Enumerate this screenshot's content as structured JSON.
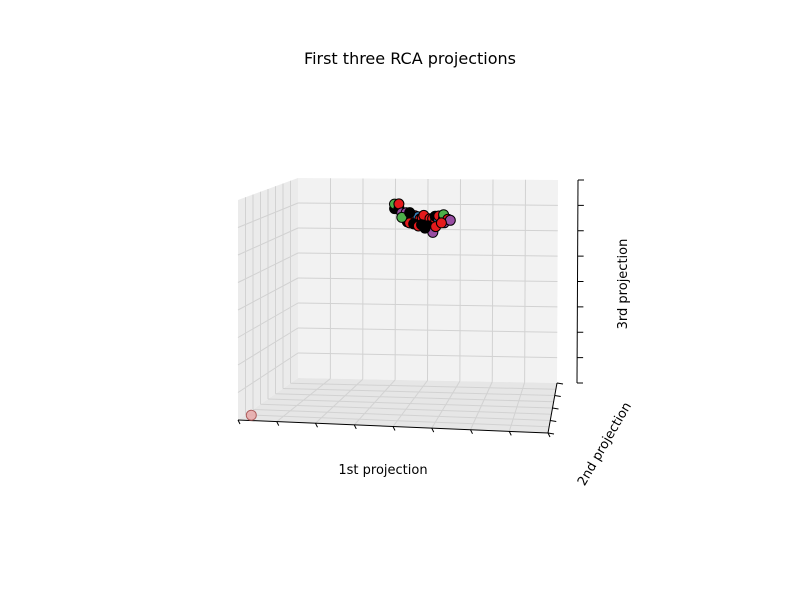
{
  "chart_data": {
    "type": "scatter",
    "projection": "3d",
    "title": "First three RCA projections",
    "xlabel": "1st projection",
    "ylabel": "2nd projection",
    "zlabel": "3rd projection",
    "grid": true,
    "colors": {
      "red": "#e41a1c",
      "green": "#4daf4a",
      "purple": "#984ea3",
      "blue": "#377eb8",
      "black": "#000000",
      "pane": "#f2f2f2",
      "grid": "#d2d2d2",
      "outlier": "#e8a8a8"
    },
    "points": [
      {
        "x": 0.72,
        "y": 0.5,
        "z": 0.88,
        "c": "black"
      },
      {
        "x": 0.73,
        "y": 0.5,
        "z": 0.9,
        "c": "green"
      },
      {
        "x": 0.745,
        "y": 0.5,
        "z": 0.88,
        "c": "black"
      },
      {
        "x": 0.755,
        "y": 0.5,
        "z": 0.9,
        "c": "red"
      },
      {
        "x": 0.75,
        "y": 0.5,
        "z": 0.86,
        "c": "purple"
      },
      {
        "x": 0.765,
        "y": 0.5,
        "z": 0.84,
        "c": "black"
      },
      {
        "x": 0.775,
        "y": 0.5,
        "z": 0.86,
        "c": "purple"
      },
      {
        "x": 0.78,
        "y": 0.5,
        "z": 0.835,
        "c": "black"
      },
      {
        "x": 0.79,
        "y": 0.5,
        "z": 0.85,
        "c": "red"
      },
      {
        "x": 0.8,
        "y": 0.5,
        "z": 0.835,
        "c": "green"
      },
      {
        "x": 0.805,
        "y": 0.5,
        "z": 0.825,
        "c": "black"
      },
      {
        "x": 0.815,
        "y": 0.5,
        "z": 0.845,
        "c": "red"
      },
      {
        "x": 0.82,
        "y": 0.5,
        "z": 0.82,
        "c": "black"
      },
      {
        "x": 0.83,
        "y": 0.5,
        "z": 0.84,
        "c": "blue"
      },
      {
        "x": 0.835,
        "y": 0.5,
        "z": 0.83,
        "c": "red"
      },
      {
        "x": 0.845,
        "y": 0.5,
        "z": 0.815,
        "c": "black"
      },
      {
        "x": 0.85,
        "y": 0.5,
        "z": 0.835,
        "c": "red"
      },
      {
        "x": 0.86,
        "y": 0.5,
        "z": 0.825,
        "c": "purple"
      },
      {
        "x": 0.865,
        "y": 0.5,
        "z": 0.845,
        "c": "red"
      },
      {
        "x": 0.875,
        "y": 0.5,
        "z": 0.81,
        "c": "red"
      },
      {
        "x": 0.88,
        "y": 0.5,
        "z": 0.79,
        "c": "purple"
      },
      {
        "x": 0.89,
        "y": 0.5,
        "z": 0.83,
        "c": "red"
      },
      {
        "x": 0.9,
        "y": 0.5,
        "z": 0.815,
        "c": "black"
      },
      {
        "x": 0.905,
        "y": 0.5,
        "z": 0.83,
        "c": "red"
      },
      {
        "x": 0.915,
        "y": 0.5,
        "z": 0.82,
        "c": "red"
      },
      {
        "x": 0.925,
        "y": 0.5,
        "z": 0.84,
        "c": "black"
      },
      {
        "x": 0.935,
        "y": 0.5,
        "z": 0.825,
        "c": "blue"
      },
      {
        "x": 0.945,
        "y": 0.5,
        "z": 0.84,
        "c": "red"
      },
      {
        "x": 0.955,
        "y": 0.5,
        "z": 0.81,
        "c": "purple"
      },
      {
        "x": 0.965,
        "y": 0.5,
        "z": 0.83,
        "c": "red"
      },
      {
        "x": 0.975,
        "y": 0.5,
        "z": 0.845,
        "c": "green"
      },
      {
        "x": 0.985,
        "y": 0.5,
        "z": 0.825,
        "c": "red"
      },
      {
        "x": 0.995,
        "y": 0.5,
        "z": 0.82,
        "c": "purple"
      },
      {
        "x": 0.76,
        "y": 0.5,
        "z": 0.82,
        "c": "black"
      },
      {
        "x": 0.77,
        "y": 0.5,
        "z": 0.815,
        "c": "red"
      },
      {
        "x": 0.79,
        "y": 0.5,
        "z": 0.81,
        "c": "black"
      },
      {
        "x": 0.81,
        "y": 0.5,
        "z": 0.8,
        "c": "red"
      },
      {
        "x": 0.83,
        "y": 0.5,
        "z": 0.805,
        "c": "black"
      },
      {
        "x": 0.86,
        "y": 0.5,
        "z": 0.8,
        "c": "black"
      },
      {
        "x": 0.87,
        "y": 0.5,
        "z": 0.77,
        "c": "purple"
      },
      {
        "x": 0.9,
        "y": 0.5,
        "z": 0.795,
        "c": "red"
      },
      {
        "x": 0.74,
        "y": 0.5,
        "z": 0.84,
        "c": "green"
      },
      {
        "x": 0.94,
        "y": 0.5,
        "z": 0.81,
        "c": "red"
      },
      {
        "x": 0.84,
        "y": 0.5,
        "z": 0.79,
        "c": "black"
      },
      {
        "x": 0.795,
        "y": 0.5,
        "z": 0.86,
        "c": "black"
      },
      {
        "x": 0.02,
        "y": 0.12,
        "z": 0.0,
        "c": "outlier"
      }
    ]
  }
}
